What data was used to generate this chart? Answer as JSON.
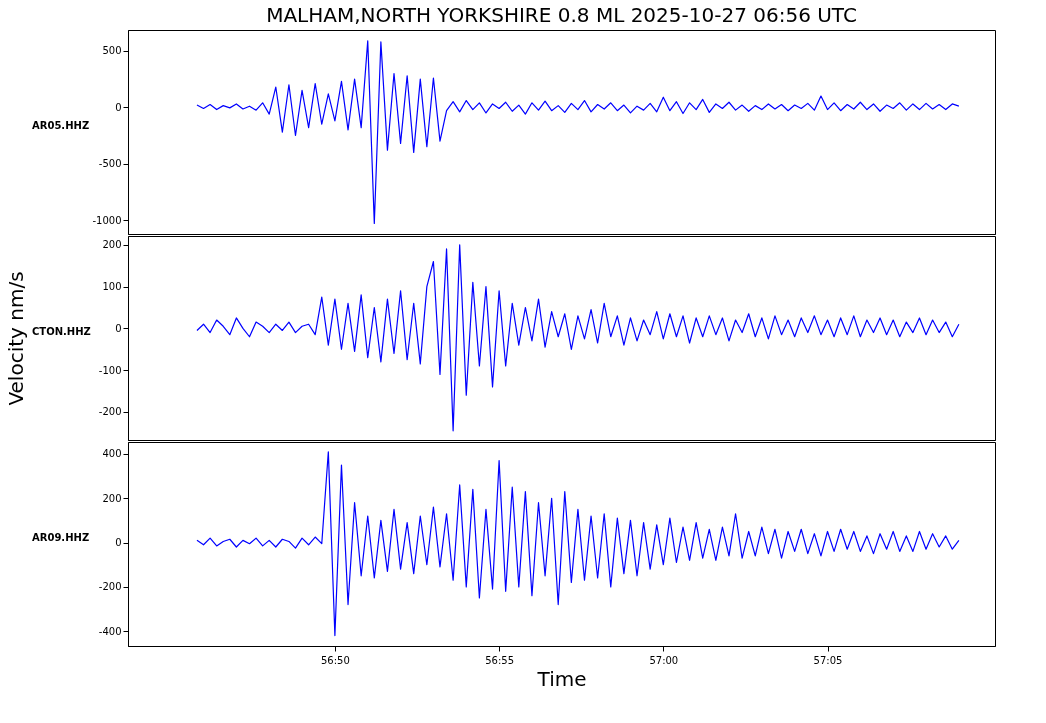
{
  "chart_data": [
    {
      "type": "line",
      "title": "MALHAM,NORTH YORKSHIRE 0.8 ML   2025-10-27 06:56 UTC",
      "tick_labels": "y",
      "marker": "none",
      "line_style": "solid",
      "grid": false,
      "xlim": [
        "2025-10-27T06:56:43.7",
        "2025-10-27T06:57:10.1"
      ],
      "ylim": [
        -1124,
        686
      ],
      "yticks": [
        -1000,
        -500,
        0,
        500
      ],
      "x": [
        "2025-10-27T06:56:45.8",
        "2025-10-27T06:56:46.0",
        "2025-10-27T06:56:46.2",
        "2025-10-27T06:56:46.4",
        "2025-10-27T06:56:46.6",
        "2025-10-27T06:56:46.8",
        "2025-10-27T06:56:47.0",
        "2025-10-27T06:56:47.2",
        "2025-10-27T06:56:47.4",
        "2025-10-27T06:56:47.6",
        "2025-10-27T06:56:47.8",
        "2025-10-27T06:56:48.0",
        "2025-10-27T06:56:48.2",
        "2025-10-27T06:56:48.4",
        "2025-10-27T06:56:48.6",
        "2025-10-27T06:56:48.8",
        "2025-10-27T06:56:49.0",
        "2025-10-27T06:56:49.2",
        "2025-10-27T06:56:49.4",
        "2025-10-27T06:56:49.6",
        "2025-10-27T06:56:49.8",
        "2025-10-27T06:56:50.0",
        "2025-10-27T06:56:50.2",
        "2025-10-27T06:56:50.4",
        "2025-10-27T06:56:50.6",
        "2025-10-27T06:56:50.8",
        "2025-10-27T06:56:51.0",
        "2025-10-27T06:56:51.2",
        "2025-10-27T06:56:51.4",
        "2025-10-27T06:56:51.6",
        "2025-10-27T06:56:51.8",
        "2025-10-27T06:56:52.0",
        "2025-10-27T06:56:52.2",
        "2025-10-27T06:56:52.4",
        "2025-10-27T06:56:52.6",
        "2025-10-27T06:56:52.8",
        "2025-10-27T06:56:53.0",
        "2025-10-27T06:56:53.2",
        "2025-10-27T06:56:53.4",
        "2025-10-27T06:56:53.6",
        "2025-10-27T06:56:53.8",
        "2025-10-27T06:56:54.0",
        "2025-10-27T06:56:54.2",
        "2025-10-27T06:56:54.4",
        "2025-10-27T06:56:54.6",
        "2025-10-27T06:56:54.8",
        "2025-10-27T06:56:55.0",
        "2025-10-27T06:56:55.2",
        "2025-10-27T06:56:55.4",
        "2025-10-27T06:56:55.6",
        "2025-10-27T06:56:55.8",
        "2025-10-27T06:56:56.0",
        "2025-10-27T06:56:56.2",
        "2025-10-27T06:56:56.4",
        "2025-10-27T06:56:56.6",
        "2025-10-27T06:56:56.8",
        "2025-10-27T06:56:57.0",
        "2025-10-27T06:56:57.2",
        "2025-10-27T06:56:57.4",
        "2025-10-27T06:56:57.6",
        "2025-10-27T06:56:57.8",
        "2025-10-27T06:56:58.0",
        "2025-10-27T06:56:58.2",
        "2025-10-27T06:56:58.4",
        "2025-10-27T06:56:58.6",
        "2025-10-27T06:56:58.8",
        "2025-10-27T06:56:59.0",
        "2025-10-27T06:56:59.2",
        "2025-10-27T06:56:59.4",
        "2025-10-27T06:56:59.6",
        "2025-10-27T06:56:59.8",
        "2025-10-27T06:57:00.0",
        "2025-10-27T06:57:00.2",
        "2025-10-27T06:57:00.4",
        "2025-10-27T06:57:00.6",
        "2025-10-27T06:57:00.8",
        "2025-10-27T06:57:01.0",
        "2025-10-27T06:57:01.2",
        "2025-10-27T06:57:01.4",
        "2025-10-27T06:57:01.6",
        "2025-10-27T06:57:01.8",
        "2025-10-27T06:57:02.0",
        "2025-10-27T06:57:02.2",
        "2025-10-27T06:57:02.4",
        "2025-10-27T06:57:02.6",
        "2025-10-27T06:57:02.8",
        "2025-10-27T06:57:03.0",
        "2025-10-27T06:57:03.2",
        "2025-10-27T06:57:03.4",
        "2025-10-27T06:57:03.6",
        "2025-10-27T06:57:03.8",
        "2025-10-27T06:57:04.0",
        "2025-10-27T06:57:04.2",
        "2025-10-27T06:57:04.4",
        "2025-10-27T06:57:04.6",
        "2025-10-27T06:57:04.8",
        "2025-10-27T06:57:05.0",
        "2025-10-27T06:57:05.2",
        "2025-10-27T06:57:05.4",
        "2025-10-27T06:57:05.6",
        "2025-10-27T06:57:05.8",
        "2025-10-27T06:57:06.0",
        "2025-10-27T06:57:06.2",
        "2025-10-27T06:57:06.4",
        "2025-10-27T06:57:06.6",
        "2025-10-27T06:57:06.8",
        "2025-10-27T06:57:07.0",
        "2025-10-27T06:57:07.2",
        "2025-10-27T06:57:07.4",
        "2025-10-27T06:57:07.6",
        "2025-10-27T06:57:07.8",
        "2025-10-27T06:57:08.0",
        "2025-10-27T06:57:08.2",
        "2025-10-27T06:57:08.4",
        "2025-10-27T06:57:08.6",
        "2025-10-27T06:57:08.8",
        "2025-10-27T06:57:09.0"
      ],
      "series": [
        {
          "name": "AR05.HHZ",
          "color": "#0000ff",
          "values": [
            20,
            -10,
            25,
            -20,
            15,
            -5,
            30,
            -15,
            10,
            -25,
            40,
            -60,
            180,
            -220,
            200,
            -250,
            150,
            -180,
            210,
            -150,
            120,
            -120,
            230,
            -200,
            250,
            -180,
            590,
            -1030,
            580,
            -380,
            300,
            -320,
            280,
            -400,
            250,
            -350,
            260,
            -300,
            -30,
            50,
            -40,
            60,
            -20,
            40,
            -50,
            30,
            -10,
            45,
            -35,
            20,
            -60,
            40,
            -25,
            55,
            -30,
            15,
            -45,
            35,
            -20,
            60,
            -40,
            25,
            -15,
            40,
            -30,
            20,
            -50,
            10,
            -25,
            35,
            -40,
            90,
            -30,
            50,
            -55,
            40,
            -20,
            70,
            -45,
            30,
            -10,
            45,
            -25,
            20,
            -35,
            15,
            -20,
            30,
            -15,
            25,
            -30,
            20,
            -10,
            35,
            -25,
            100,
            -20,
            40,
            -30,
            25,
            -15,
            45,
            -20,
            30,
            -35,
            20,
            -10,
            40,
            -25,
            30,
            -20,
            35,
            -15,
            25,
            -20,
            30,
            10
          ]
        }
      ]
    },
    {
      "type": "line",
      "ylabel": "Velocity nm/s",
      "tick_labels": "y",
      "marker": "none",
      "line_style": "solid",
      "grid": false,
      "xlim": [
        "2025-10-27T06:56:43.7",
        "2025-10-27T06:57:10.1"
      ],
      "ylim": [
        -267,
        221
      ],
      "yticks": [
        -200,
        -100,
        0,
        100,
        200
      ],
      "x": [
        "2025-10-27T06:56:45.8",
        "2025-10-27T06:56:46.0",
        "2025-10-27T06:56:46.2",
        "2025-10-27T06:56:46.4",
        "2025-10-27T06:56:46.6",
        "2025-10-27T06:56:46.8",
        "2025-10-27T06:56:47.0",
        "2025-10-27T06:56:47.2",
        "2025-10-27T06:56:47.4",
        "2025-10-27T06:56:47.6",
        "2025-10-27T06:56:47.8",
        "2025-10-27T06:56:48.0",
        "2025-10-27T06:56:48.2",
        "2025-10-27T06:56:48.4",
        "2025-10-27T06:56:48.6",
        "2025-10-27T06:56:48.8",
        "2025-10-27T06:56:49.0",
        "2025-10-27T06:56:49.2",
        "2025-10-27T06:56:49.4",
        "2025-10-27T06:56:49.6",
        "2025-10-27T06:56:49.8",
        "2025-10-27T06:56:50.0",
        "2025-10-27T06:56:50.2",
        "2025-10-27T06:56:50.4",
        "2025-10-27T06:56:50.6",
        "2025-10-27T06:56:50.8",
        "2025-10-27T06:56:51.0",
        "2025-10-27T06:56:51.2",
        "2025-10-27T06:56:51.4",
        "2025-10-27T06:56:51.6",
        "2025-10-27T06:56:51.8",
        "2025-10-27T06:56:52.0",
        "2025-10-27T06:56:52.2",
        "2025-10-27T06:56:52.4",
        "2025-10-27T06:56:52.6",
        "2025-10-27T06:56:52.8",
        "2025-10-27T06:56:53.0",
        "2025-10-27T06:56:53.2",
        "2025-10-27T06:56:53.4",
        "2025-10-27T06:56:53.6",
        "2025-10-27T06:56:53.8",
        "2025-10-27T06:56:54.0",
        "2025-10-27T06:56:54.2",
        "2025-10-27T06:56:54.4",
        "2025-10-27T06:56:54.6",
        "2025-10-27T06:56:54.8",
        "2025-10-27T06:56:55.0",
        "2025-10-27T06:56:55.2",
        "2025-10-27T06:56:55.4",
        "2025-10-27T06:56:55.6",
        "2025-10-27T06:56:55.8",
        "2025-10-27T06:56:56.0",
        "2025-10-27T06:56:56.2",
        "2025-10-27T06:56:56.4",
        "2025-10-27T06:56:56.6",
        "2025-10-27T06:56:56.8",
        "2025-10-27T06:56:57.0",
        "2025-10-27T06:56:57.2",
        "2025-10-27T06:56:57.4",
        "2025-10-27T06:56:57.6",
        "2025-10-27T06:56:57.8",
        "2025-10-27T06:56:58.0",
        "2025-10-27T06:56:58.2",
        "2025-10-27T06:56:58.4",
        "2025-10-27T06:56:58.6",
        "2025-10-27T06:56:58.8",
        "2025-10-27T06:56:59.0",
        "2025-10-27T06:56:59.2",
        "2025-10-27T06:56:59.4",
        "2025-10-27T06:56:59.6",
        "2025-10-27T06:56:59.8",
        "2025-10-27T06:57:00.0",
        "2025-10-27T06:57:00.2",
        "2025-10-27T06:57:00.4",
        "2025-10-27T06:57:00.6",
        "2025-10-27T06:57:00.8",
        "2025-10-27T06:57:01.0",
        "2025-10-27T06:57:01.2",
        "2025-10-27T06:57:01.4",
        "2025-10-27T06:57:01.6",
        "2025-10-27T06:57:01.8",
        "2025-10-27T06:57:02.0",
        "2025-10-27T06:57:02.2",
        "2025-10-27T06:57:02.4",
        "2025-10-27T06:57:02.6",
        "2025-10-27T06:57:02.8",
        "2025-10-27T06:57:03.0",
        "2025-10-27T06:57:03.2",
        "2025-10-27T06:57:03.4",
        "2025-10-27T06:57:03.6",
        "2025-10-27T06:57:03.8",
        "2025-10-27T06:57:04.0",
        "2025-10-27T06:57:04.2",
        "2025-10-27T06:57:04.4",
        "2025-10-27T06:57:04.6",
        "2025-10-27T06:57:04.8",
        "2025-10-27T06:57:05.0",
        "2025-10-27T06:57:05.2",
        "2025-10-27T06:57:05.4",
        "2025-10-27T06:57:05.6",
        "2025-10-27T06:57:05.8",
        "2025-10-27T06:57:06.0",
        "2025-10-27T06:57:06.2",
        "2025-10-27T06:57:06.4",
        "2025-10-27T06:57:06.6",
        "2025-10-27T06:57:06.8",
        "2025-10-27T06:57:07.0",
        "2025-10-27T06:57:07.2",
        "2025-10-27T06:57:07.4",
        "2025-10-27T06:57:07.6",
        "2025-10-27T06:57:07.8",
        "2025-10-27T06:57:08.0",
        "2025-10-27T06:57:08.2",
        "2025-10-27T06:57:08.4",
        "2025-10-27T06:57:08.6",
        "2025-10-27T06:57:08.8",
        "2025-10-27T06:57:09.0"
      ],
      "series": [
        {
          "name": "CTON.HHZ",
          "color": "#0000ff",
          "values": [
            -5,
            10,
            -10,
            20,
            5,
            -15,
            25,
            0,
            -20,
            15,
            5,
            -10,
            10,
            -5,
            15,
            -10,
            5,
            10,
            -15,
            75,
            -40,
            70,
            -50,
            60,
            -55,
            80,
            -70,
            50,
            -80,
            70,
            -60,
            90,
            -75,
            60,
            -85,
            100,
            160,
            -110,
            190,
            -245,
            200,
            -160,
            110,
            -90,
            100,
            -140,
            90,
            -90,
            60,
            -40,
            50,
            -30,
            70,
            -45,
            40,
            -20,
            35,
            -50,
            30,
            -25,
            45,
            -35,
            60,
            -20,
            30,
            -40,
            25,
            -30,
            20,
            -15,
            40,
            -25,
            35,
            -20,
            30,
            -35,
            25,
            -20,
            30,
            -15,
            25,
            -30,
            20,
            -10,
            35,
            -20,
            25,
            -25,
            30,
            -15,
            20,
            -20,
            25,
            -10,
            30,
            -15,
            20,
            -20,
            25,
            -15,
            30,
            -20,
            20,
            -10,
            25,
            -15,
            20,
            -20,
            15,
            -10,
            25,
            -15,
            20,
            -10,
            15,
            -20,
            10
          ]
        }
      ]
    },
    {
      "type": "line",
      "xlabel": "Time",
      "marker": "none",
      "line_style": "solid",
      "grid": false,
      "xlim": [
        "2025-10-27T06:56:43.7",
        "2025-10-27T06:57:10.1"
      ],
      "xticks": [
        {
          "value": "2025-10-27T06:56:50",
          "label": "56:50"
        },
        {
          "value": "2025-10-27T06:56:55",
          "label": "56:55"
        },
        {
          "value": "2025-10-27T06:57:00",
          "label": "57:00"
        },
        {
          "value": "2025-10-27T06:57:05",
          "label": "57:05"
        }
      ],
      "ylim": [
        -467,
        454
      ],
      "yticks": [
        -400,
        -200,
        0,
        200,
        400
      ],
      "x": [
        "2025-10-27T06:56:45.8",
        "2025-10-27T06:56:46.0",
        "2025-10-27T06:56:46.2",
        "2025-10-27T06:56:46.4",
        "2025-10-27T06:56:46.6",
        "2025-10-27T06:56:46.8",
        "2025-10-27T06:56:47.0",
        "2025-10-27T06:56:47.2",
        "2025-10-27T06:56:47.4",
        "2025-10-27T06:56:47.6",
        "2025-10-27T06:56:47.8",
        "2025-10-27T06:56:48.0",
        "2025-10-27T06:56:48.2",
        "2025-10-27T06:56:48.4",
        "2025-10-27T06:56:48.6",
        "2025-10-27T06:56:48.8",
        "2025-10-27T06:56:49.0",
        "2025-10-27T06:56:49.2",
        "2025-10-27T06:56:49.4",
        "2025-10-27T06:56:49.6",
        "2025-10-27T06:56:49.8",
        "2025-10-27T06:56:50.0",
        "2025-10-27T06:56:50.2",
        "2025-10-27T06:56:50.4",
        "2025-10-27T06:56:50.6",
        "2025-10-27T06:56:50.8",
        "2025-10-27T06:56:51.0",
        "2025-10-27T06:56:51.2",
        "2025-10-27T06:56:51.4",
        "2025-10-27T06:56:51.6",
        "2025-10-27T06:56:51.8",
        "2025-10-27T06:56:52.0",
        "2025-10-27T06:56:52.2",
        "2025-10-27T06:56:52.4",
        "2025-10-27T06:56:52.6",
        "2025-10-27T06:56:52.8",
        "2025-10-27T06:56:53.0",
        "2025-10-27T06:56:53.2",
        "2025-10-27T06:56:53.4",
        "2025-10-27T06:56:53.6",
        "2025-10-27T06:56:53.8",
        "2025-10-27T06:56:54.0",
        "2025-10-27T06:56:54.2",
        "2025-10-27T06:56:54.4",
        "2025-10-27T06:56:54.6",
        "2025-10-27T06:56:54.8",
        "2025-10-27T06:56:55.0",
        "2025-10-27T06:56:55.2",
        "2025-10-27T06:56:55.4",
        "2025-10-27T06:56:55.6",
        "2025-10-27T06:56:55.8",
        "2025-10-27T06:56:56.0",
        "2025-10-27T06:56:56.2",
        "2025-10-27T06:56:56.4",
        "2025-10-27T06:56:56.6",
        "2025-10-27T06:56:56.8",
        "2025-10-27T06:56:57.0",
        "2025-10-27T06:56:57.2",
        "2025-10-27T06:56:57.4",
        "2025-10-27T06:56:57.6",
        "2025-10-27T06:56:57.8",
        "2025-10-27T06:56:58.0",
        "2025-10-27T06:56:58.2",
        "2025-10-27T06:56:58.4",
        "2025-10-27T06:56:58.6",
        "2025-10-27T06:56:58.8",
        "2025-10-27T06:56:59.0",
        "2025-10-27T06:56:59.2",
        "2025-10-27T06:56:59.4",
        "2025-10-27T06:56:59.6",
        "2025-10-27T06:56:59.8",
        "2025-10-27T06:57:00.0",
        "2025-10-27T06:57:00.2",
        "2025-10-27T06:57:00.4",
        "2025-10-27T06:57:00.6",
        "2025-10-27T06:57:00.8",
        "2025-10-27T06:57:01.0",
        "2025-10-27T06:57:01.2",
        "2025-10-27T06:57:01.4",
        "2025-10-27T06:57:01.6",
        "2025-10-27T06:57:01.8",
        "2025-10-27T06:57:02.0",
        "2025-10-27T06:57:02.2",
        "2025-10-27T06:57:02.4",
        "2025-10-27T06:57:02.6",
        "2025-10-27T06:57:02.8",
        "2025-10-27T06:57:03.0",
        "2025-10-27T06:57:03.2",
        "2025-10-27T06:57:03.4",
        "2025-10-27T06:57:03.6",
        "2025-10-27T06:57:03.8",
        "2025-10-27T06:57:04.0",
        "2025-10-27T06:57:04.2",
        "2025-10-27T06:57:04.4",
        "2025-10-27T06:57:04.6",
        "2025-10-27T06:57:04.8",
        "2025-10-27T06:57:05.0",
        "2025-10-27T06:57:05.2",
        "2025-10-27T06:57:05.4",
        "2025-10-27T06:57:05.6",
        "2025-10-27T06:57:05.8",
        "2025-10-27T06:57:06.0",
        "2025-10-27T06:57:06.2",
        "2025-10-27T06:57:06.4",
        "2025-10-27T06:57:06.6",
        "2025-10-27T06:57:06.8",
        "2025-10-27T06:57:07.0",
        "2025-10-27T06:57:07.2",
        "2025-10-27T06:57:07.4",
        "2025-10-27T06:57:07.6",
        "2025-10-27T06:57:07.8",
        "2025-10-27T06:57:08.0",
        "2025-10-27T06:57:08.2",
        "2025-10-27T06:57:08.4",
        "2025-10-27T06:57:08.6",
        "2025-10-27T06:57:08.8",
        "2025-10-27T06:57:09.0"
      ],
      "series": [
        {
          "name": "AR09.HHZ",
          "color": "#0000ff",
          "values": [
            10,
            -10,
            20,
            -15,
            5,
            15,
            -20,
            10,
            -5,
            20,
            -15,
            10,
            -20,
            15,
            5,
            -25,
            20,
            -10,
            25,
            -5,
            410,
            -420,
            350,
            -280,
            180,
            -150,
            120,
            -160,
            100,
            -130,
            150,
            -120,
            90,
            -140,
            120,
            -100,
            160,
            -110,
            130,
            -170,
            260,
            -200,
            240,
            -250,
            150,
            -210,
            370,
            -220,
            250,
            -200,
            230,
            -240,
            180,
            -150,
            200,
            -280,
            230,
            -180,
            150,
            -170,
            120,
            -160,
            130,
            -200,
            110,
            -140,
            100,
            -150,
            90,
            -120,
            80,
            -100,
            110,
            -90,
            70,
            -80,
            90,
            -70,
            60,
            -80,
            70,
            -60,
            130,
            -70,
            50,
            -60,
            70,
            -50,
            60,
            -70,
            50,
            -40,
            60,
            -50,
            40,
            -60,
            50,
            -40,
            60,
            -30,
            50,
            -40,
            30,
            -50,
            40,
            -30,
            50,
            -40,
            30,
            -40,
            50,
            -30,
            40,
            -20,
            30,
            -30,
            10
          ]
        }
      ]
    }
  ]
}
